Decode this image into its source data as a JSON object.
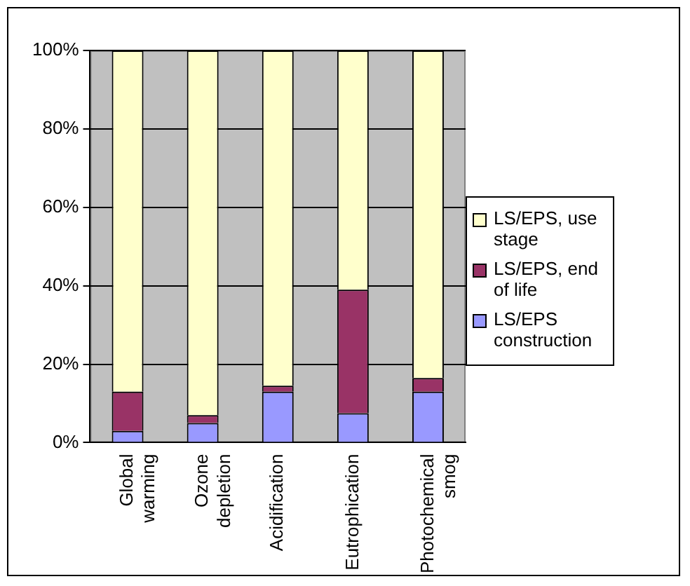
{
  "chart_data": {
    "type": "bar",
    "stacked": true,
    "categories": [
      "Global warming",
      "Ozone depletion",
      "Acidification",
      "Eutrophication",
      "Photochemical smog"
    ],
    "series": [
      {
        "name": "LS/EPS construction",
        "color": "#9999ff",
        "values": [
          3,
          5,
          13,
          7.5,
          13
        ]
      },
      {
        "name": "LS/EPS, end of life",
        "color": "#993366",
        "values": [
          10,
          2,
          1.5,
          31.5,
          3.5
        ]
      },
      {
        "name": "LS/EPS, use stage",
        "color": "#ffffcc",
        "values": [
          87,
          93,
          85.5,
          61,
          83.5
        ]
      }
    ],
    "ylim": [
      0,
      100
    ],
    "yticks": [
      {
        "value": 0,
        "label": "0%"
      },
      {
        "value": 20,
        "label": "20%"
      },
      {
        "value": 40,
        "label": "40%"
      },
      {
        "value": 60,
        "label": "60%"
      },
      {
        "value": 80,
        "label": "80%"
      },
      {
        "value": 100,
        "label": "100%"
      }
    ],
    "grid": "y",
    "legend": "right"
  }
}
